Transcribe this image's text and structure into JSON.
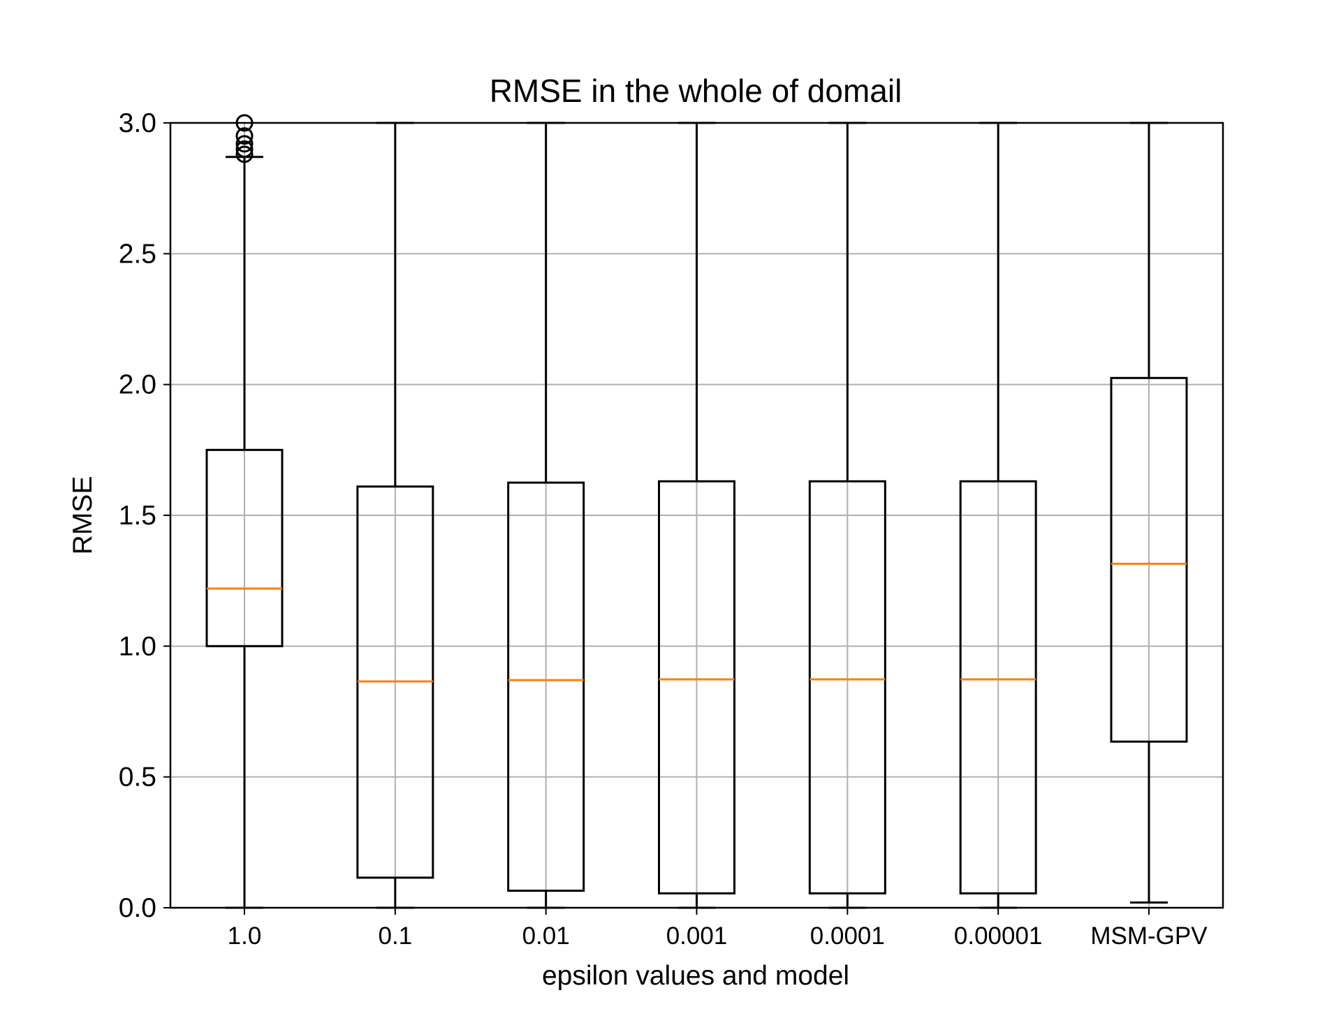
{
  "chart_data": {
    "type": "boxplot",
    "title": "RMSE in the whole of domail",
    "xlabel": "epsilon values and model",
    "ylabel": "RMSE",
    "ylim": [
      0.0,
      3.0
    ],
    "yticks": [
      "0.0",
      "0.5",
      "1.0",
      "1.5",
      "2.0",
      "2.5",
      "3.0"
    ],
    "grid": true,
    "colors": {
      "box": "#000000",
      "median": "#ff7f0e",
      "grid": "#b0b0b0",
      "frame": "#000000"
    },
    "categories": [
      "1.0",
      "0.1",
      "0.01",
      "0.001",
      "0.0001",
      "0.00001",
      "MSM-GPV"
    ],
    "boxes": [
      {
        "label": "1.0",
        "whisker_low": 0.0,
        "q1": 1.0,
        "median": 1.22,
        "q3": 1.75,
        "whisker_high": 2.87,
        "outliers": [
          2.88,
          2.9,
          2.92,
          2.95,
          3.0
        ]
      },
      {
        "label": "0.1",
        "whisker_low": 0.0,
        "q1": 0.115,
        "median": 0.865,
        "q3": 1.61,
        "whisker_high": 3.0,
        "outliers": []
      },
      {
        "label": "0.01",
        "whisker_low": 0.0,
        "q1": 0.065,
        "median": 0.87,
        "q3": 1.625,
        "whisker_high": 3.0,
        "outliers": []
      },
      {
        "label": "0.001",
        "whisker_low": 0.0,
        "q1": 0.055,
        "median": 0.873,
        "q3": 1.63,
        "whisker_high": 3.0,
        "outliers": []
      },
      {
        "label": "0.0001",
        "whisker_low": 0.0,
        "q1": 0.055,
        "median": 0.873,
        "q3": 1.63,
        "whisker_high": 3.0,
        "outliers": []
      },
      {
        "label": "0.00001",
        "whisker_low": 0.0,
        "q1": 0.055,
        "median": 0.873,
        "q3": 1.63,
        "whisker_high": 3.0,
        "outliers": []
      },
      {
        "label": "MSM-GPV",
        "whisker_low": 0.02,
        "q1": 0.635,
        "median": 1.315,
        "q3": 2.025,
        "whisker_high": 3.0,
        "outliers": []
      }
    ]
  }
}
